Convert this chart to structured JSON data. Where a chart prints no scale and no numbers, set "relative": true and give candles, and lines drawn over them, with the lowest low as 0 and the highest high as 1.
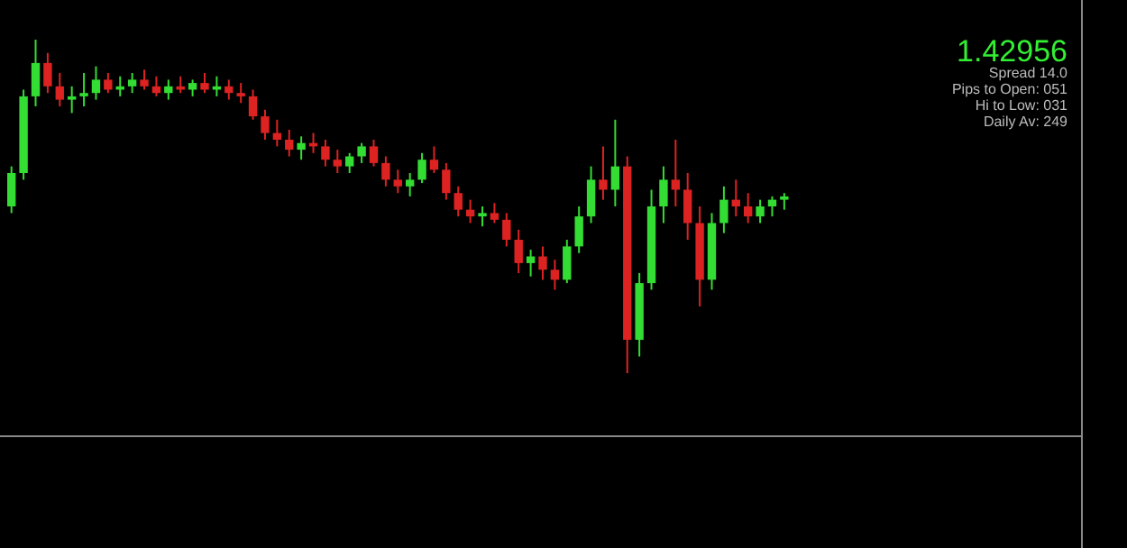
{
  "chart_data": {
    "type": "candlestick",
    "relative": true,
    "annotations": [
      "1.42956",
      "Spread 14.0",
      "Pips to Open: 051",
      "Hi to Low: 031",
      "Daily Av: 249"
    ],
    "categories": [
      null,
      null,
      null,
      null,
      null,
      null,
      null,
      null,
      null,
      null,
      null,
      null,
      null,
      null,
      null,
      null,
      null,
      null,
      null,
      null,
      null,
      null,
      null,
      null,
      null,
      null,
      null,
      null,
      null,
      null,
      null,
      null,
      null,
      null,
      null,
      null,
      null,
      null,
      null,
      null,
      null,
      null,
      null,
      null,
      null,
      null,
      null,
      null,
      null,
      null,
      null,
      null,
      null,
      null,
      null,
      null,
      null,
      null,
      null,
      null,
      null,
      null,
      null,
      null,
      null,
      null,
      null,
      null,
      null,
      null,
      null,
      null,
      null,
      null,
      null,
      null,
      null,
      null,
      null,
      null,
      null,
      null,
      null,
      null,
      null,
      null,
      null,
      null,
      null
    ],
    "ohlc": [
      [
        0.5,
        0.62,
        0.48,
        0.6
      ],
      [
        0.6,
        0.85,
        0.58,
        0.83
      ],
      [
        0.83,
        1.0,
        0.8,
        0.93
      ],
      [
        0.93,
        0.96,
        0.84,
        0.86
      ],
      [
        0.86,
        0.9,
        0.8,
        0.82
      ],
      [
        0.82,
        0.86,
        0.78,
        0.83
      ],
      [
        0.83,
        0.9,
        0.8,
        0.84
      ],
      [
        0.84,
        0.92,
        0.82,
        0.88
      ],
      [
        0.88,
        0.9,
        0.84,
        0.85
      ],
      [
        0.85,
        0.89,
        0.83,
        0.86
      ],
      [
        0.86,
        0.9,
        0.84,
        0.88
      ],
      [
        0.88,
        0.91,
        0.85,
        0.86
      ],
      [
        0.86,
        0.89,
        0.83,
        0.84
      ],
      [
        0.84,
        0.88,
        0.82,
        0.86
      ],
      [
        0.86,
        0.89,
        0.84,
        0.85
      ],
      [
        0.85,
        0.88,
        0.83,
        0.87
      ],
      [
        0.87,
        0.9,
        0.84,
        0.85
      ],
      [
        0.85,
        0.89,
        0.83,
        0.86
      ],
      [
        0.86,
        0.88,
        0.82,
        0.84
      ],
      [
        0.84,
        0.87,
        0.81,
        0.83
      ],
      [
        0.83,
        0.85,
        0.76,
        0.77
      ],
      [
        0.77,
        0.79,
        0.7,
        0.72
      ],
      [
        0.72,
        0.76,
        0.68,
        0.7
      ],
      [
        0.7,
        0.73,
        0.65,
        0.67
      ],
      [
        0.67,
        0.71,
        0.64,
        0.69
      ],
      [
        0.69,
        0.72,
        0.66,
        0.68
      ],
      [
        0.68,
        0.7,
        0.62,
        0.64
      ],
      [
        0.64,
        0.67,
        0.6,
        0.62
      ],
      [
        0.62,
        0.66,
        0.6,
        0.65
      ],
      [
        0.65,
        0.69,
        0.63,
        0.68
      ],
      [
        0.68,
        0.7,
        0.62,
        0.63
      ],
      [
        0.63,
        0.65,
        0.56,
        0.58
      ],
      [
        0.58,
        0.61,
        0.54,
        0.56
      ],
      [
        0.56,
        0.6,
        0.53,
        0.58
      ],
      [
        0.58,
        0.66,
        0.57,
        0.64
      ],
      [
        0.64,
        0.68,
        0.6,
        0.61
      ],
      [
        0.61,
        0.63,
        0.52,
        0.54
      ],
      [
        0.54,
        0.56,
        0.47,
        0.49
      ],
      [
        0.49,
        0.52,
        0.45,
        0.47
      ],
      [
        0.47,
        0.5,
        0.44,
        0.48
      ],
      [
        0.48,
        0.51,
        0.45,
        0.46
      ],
      [
        0.46,
        0.48,
        0.38,
        0.4
      ],
      [
        0.4,
        0.43,
        0.3,
        0.33
      ],
      [
        0.33,
        0.37,
        0.29,
        0.35
      ],
      [
        0.35,
        0.38,
        0.28,
        0.31
      ],
      [
        0.31,
        0.34,
        0.25,
        0.28
      ],
      [
        0.28,
        0.4,
        0.27,
        0.38
      ],
      [
        0.38,
        0.5,
        0.36,
        0.47
      ],
      [
        0.47,
        0.62,
        0.45,
        0.58
      ],
      [
        0.58,
        0.68,
        0.52,
        0.55
      ],
      [
        0.55,
        0.76,
        0.5,
        0.62
      ],
      [
        0.62,
        0.65,
        0.0,
        0.1
      ],
      [
        0.1,
        0.3,
        0.05,
        0.27
      ],
      [
        0.27,
        0.55,
        0.25,
        0.5
      ],
      [
        0.5,
        0.62,
        0.45,
        0.58
      ],
      [
        0.58,
        0.7,
        0.5,
        0.55
      ],
      [
        0.55,
        0.6,
        0.4,
        0.45
      ],
      [
        0.45,
        0.5,
        0.2,
        0.28
      ],
      [
        0.28,
        0.48,
        0.25,
        0.45
      ],
      [
        0.45,
        0.56,
        0.42,
        0.52
      ],
      [
        0.52,
        0.58,
        0.47,
        0.5
      ],
      [
        0.5,
        0.54,
        0.45,
        0.47
      ],
      [
        0.47,
        0.52,
        0.45,
        0.5
      ],
      [
        0.5,
        0.53,
        0.47,
        0.52
      ],
      [
        0.52,
        0.54,
        0.49,
        0.53
      ],
      null,
      null,
      null,
      null,
      null,
      null,
      null,
      null,
      null,
      null,
      null,
      null,
      null,
      null,
      null,
      null,
      null,
      null,
      null,
      null,
      null,
      null,
      null,
      null
    ]
  }
}
